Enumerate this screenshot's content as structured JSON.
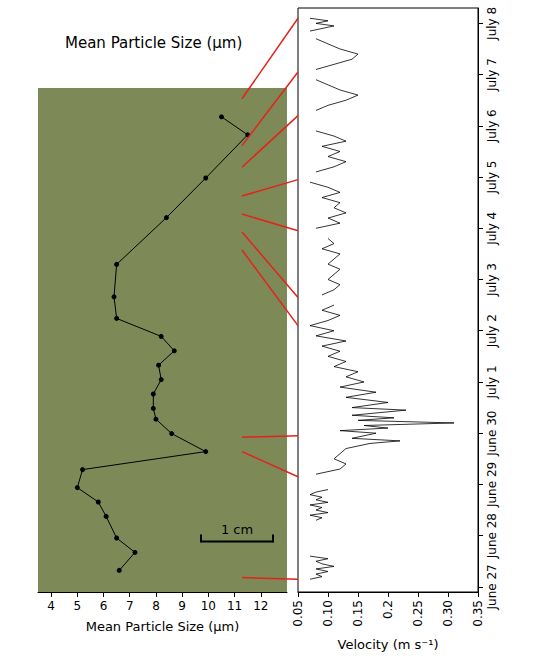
{
  "chart_data": [
    {
      "type": "line",
      "title": "Mean Particle Size (µm)",
      "x_label": "Mean Particle Size (µm)",
      "x": [
        10.5,
        11.5,
        9.9,
        8.4,
        6.5,
        6.4,
        6.5,
        8.2,
        8.7,
        8.1,
        8.2,
        7.9,
        7.9,
        8.0,
        8.6,
        9.9,
        5.2,
        5.0,
        5.8,
        6.1,
        6.5,
        7.2,
        6.6
      ],
      "y": [
        0.4,
        0.65,
        1.25,
        1.8,
        2.45,
        2.9,
        3.2,
        3.45,
        3.65,
        3.85,
        4.05,
        4.25,
        4.45,
        4.6,
        4.8,
        5.05,
        5.3,
        5.55,
        5.75,
        5.95,
        6.25,
        6.45,
        6.7
      ],
      "xlim": [
        3.5,
        13
      ],
      "xticks": [
        4,
        5,
        6,
        7,
        8,
        9,
        10,
        11,
        12
      ],
      "ylim": [
        0,
        7
      ],
      "tick_labels": "x",
      "grid": false,
      "color": "#000000",
      "marker": "circle",
      "scale_bar": {
        "label": "1 cm",
        "length": 1
      }
    },
    {
      "type": "line",
      "x_label": "Velocity (m s⁻¹)",
      "y": [
        27.15,
        27.2,
        27.25,
        27.3,
        27.35,
        27.4,
        27.45,
        27.5,
        27.55,
        27.6,
        27.9,
        28.3,
        28.35,
        28.4,
        28.45,
        28.5,
        28.55,
        28.6,
        28.65,
        28.7,
        28.75,
        28.8,
        28.85,
        28.9,
        29.1,
        29.2,
        29.3,
        29.4,
        29.5,
        29.6,
        29.7,
        29.8,
        29.85,
        29.9,
        30.0,
        30.05,
        30.1,
        30.15,
        30.2,
        30.25,
        30.3,
        30.35,
        30.45,
        30.5,
        30.6,
        30.7,
        30.8,
        30.9,
        31.0,
        31.1,
        31.2,
        31.3,
        31.4,
        31.5,
        31.6,
        31.7,
        31.8,
        31.9,
        32.0,
        32.1,
        32.2,
        32.3,
        32.4,
        32.5,
        32.6,
        32.7,
        32.8,
        32.9,
        33.0,
        33.1,
        33.2,
        33.3,
        33.4,
        33.5,
        33.6,
        33.7,
        33.8,
        33.95,
        34.0,
        34.1,
        34.2,
        34.3,
        34.4,
        34.5,
        34.6,
        34.7,
        34.8,
        34.9,
        35.0,
        35.1,
        35.2,
        35.3,
        35.4,
        35.5,
        35.6,
        35.7,
        35.8,
        35.9,
        36.1,
        36.3,
        36.4,
        36.5,
        36.6,
        36.7,
        36.8,
        36.9,
        37.0,
        37.1,
        37.2,
        37.3,
        37.4,
        37.5,
        37.6,
        37.7,
        37.78,
        37.85,
        37.9,
        37.95,
        38.0,
        38.05,
        38.1
      ],
      "x": [
        0.07,
        0.09,
        0.08,
        0.1,
        0.08,
        0.11,
        0.09,
        0.08,
        0.1,
        0.07,
        null,
        0.08,
        0.09,
        0.07,
        0.1,
        0.08,
        0.09,
        0.07,
        0.1,
        0.08,
        0.09,
        0.07,
        0.08,
        0.1,
        null,
        0.08,
        0.12,
        0.13,
        0.11,
        0.12,
        0.13,
        0.17,
        0.22,
        0.14,
        0.18,
        0.12,
        0.2,
        0.16,
        0.31,
        0.15,
        0.21,
        0.14,
        0.23,
        0.14,
        0.2,
        0.13,
        0.18,
        0.12,
        0.16,
        0.13,
        0.15,
        0.11,
        0.13,
        0.1,
        0.12,
        0.09,
        0.13,
        0.08,
        0.11,
        0.07,
        0.1,
        0.12,
        0.09,
        0.11,
        null,
        0.09,
        0.11,
        0.12,
        0.1,
        0.11,
        0.12,
        0.1,
        0.11,
        0.12,
        0.09,
        0.11,
        0.1,
        null,
        0.08,
        0.12,
        0.1,
        0.13,
        0.11,
        0.12,
        0.09,
        0.12,
        0.1,
        0.07,
        null,
        0.08,
        0.11,
        0.13,
        0.1,
        0.12,
        0.09,
        0.13,
        0.11,
        0.08,
        null,
        0.08,
        0.1,
        0.13,
        0.15,
        0.12,
        0.1,
        0.08,
        null,
        0.08,
        0.11,
        0.14,
        0.15,
        0.12,
        0.1,
        0.08,
        null,
        0.07,
        0.09,
        0.11,
        0.08,
        0.1,
        0.07
      ],
      "xlim": [
        0.05,
        0.35
      ],
      "xticks": [
        0.05,
        {
          "value": 0.1,
          "label": "0.10"
        },
        0.15,
        0.2,
        0.25,
        {
          "value": 0.3,
          "label": "0.30"
        },
        0.35
      ],
      "ylim": [
        26.9,
        38.3
      ],
      "yticks": [
        {
          "value": 27,
          "label": "June 27"
        },
        {
          "value": 28,
          "label": "June 28"
        },
        {
          "value": 29,
          "label": "June 29"
        },
        {
          "value": 30,
          "label": "June 30"
        },
        {
          "value": 31,
          "label": "July 1"
        },
        {
          "value": 32,
          "label": "July 2"
        },
        {
          "value": 33,
          "label": "July 3"
        },
        {
          "value": 34,
          "label": "July 4"
        },
        {
          "value": 35,
          "label": "July 5"
        },
        {
          "value": 36,
          "label": "July 6"
        },
        {
          "value": 37,
          "label": "July 7"
        },
        {
          "value": 38,
          "label": "July 8"
        }
      ],
      "grid": false,
      "color": "#000000"
    }
  ],
  "tie_lines": {
    "color": "#e3231b",
    "pairs": [
      [
        0.15,
        38.1
      ],
      [
        0.8,
        37.05
      ],
      [
        1.1,
        36.2
      ],
      [
        1.5,
        34.95
      ],
      [
        1.75,
        33.95
      ],
      [
        2.0,
        32.65
      ],
      [
        2.25,
        32.1
      ],
      [
        4.85,
        29.95
      ],
      [
        5.05,
        29.15
      ],
      [
        6.8,
        27.15
      ]
    ]
  }
}
